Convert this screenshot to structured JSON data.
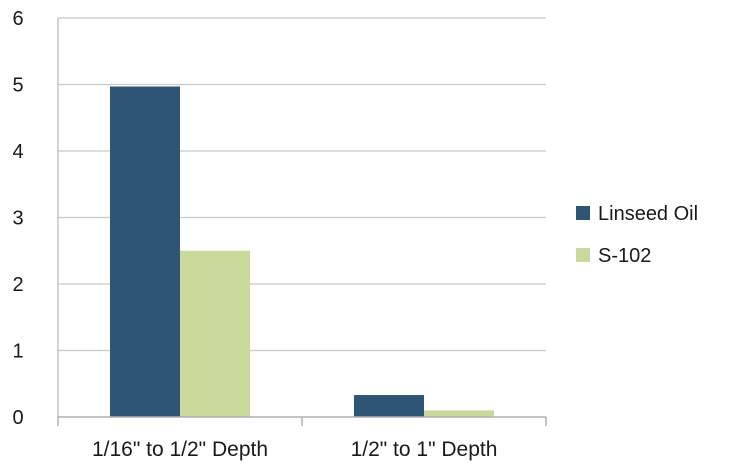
{
  "chart_data": {
    "type": "bar",
    "title": "",
    "xlabel": "",
    "ylabel": "",
    "categories": [
      "1/16\" to 1/2\" Depth",
      "1/2\" to 1\" Depth"
    ],
    "series": [
      {
        "name": "Linseed Oil",
        "values": [
          4.97,
          0.33
        ],
        "color": "#2e5573"
      },
      {
        "name": "S-102",
        "values": [
          2.5,
          0.1
        ],
        "color": "#c8d99b"
      }
    ],
    "ylim": [
      0,
      6
    ],
    "yticks": [
      "0",
      "1",
      "2",
      "3",
      "4",
      "5",
      "6"
    ],
    "grid": true,
    "legend_position": "right"
  }
}
